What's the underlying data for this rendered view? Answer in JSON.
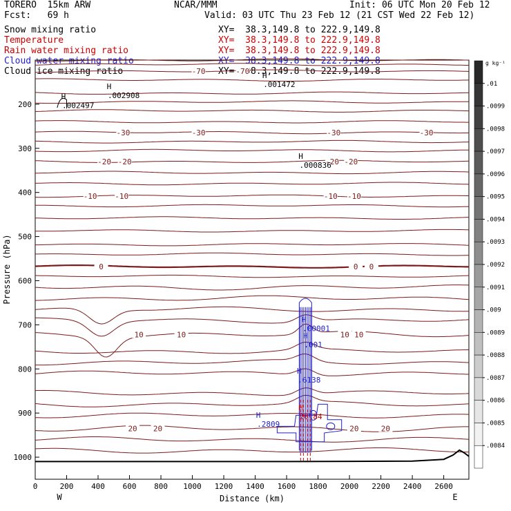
{
  "header": {
    "model": "TORERO  15km ARW",
    "org": "NCAR/MMM",
    "init": "Init: 06 UTC Mon 20 Feb 12",
    "fcst": "Fcst:   69 h",
    "valid": "Valid: 03 UTC Thu 23 Feb 12 (21 CST Wed 22 Feb 12)"
  },
  "fields": [
    {
      "name": "Snow mixing ratio",
      "xy": "XY=  38.3,149.8 to 222.9,149.8",
      "color": "#000000"
    },
    {
      "name": "Temperature",
      "xy": "XY=  38.3,149.8 to 222.9,149.8",
      "color": "#cc0000"
    },
    {
      "name": "Rain water mixing ratio",
      "xy": "XY=  38.3,149.8 to 222.9,149.8",
      "color": "#cc0000"
    },
    {
      "name": "Cloud water mixing ratio",
      "xy": "XY=  38.3,149.8 to 222.9,149.8",
      "color": "#1f1fd0"
    },
    {
      "name": "Cloud ice mixing ratio",
      "xy": "XY=  38.3,149.8 to 222.9,149.8",
      "color": "#000000"
    }
  ],
  "colors": {
    "temperature": "#7a1a1a",
    "rain": "#cc0000",
    "cloud_water": "#1f1fd0",
    "ground": "#000000"
  },
  "chart_data": {
    "type": "line",
    "xlabel": "Distance (km)",
    "ylabel": "Pressure (hPa)",
    "xlim": [
      0,
      2760
    ],
    "ylim": [
      1050,
      100
    ],
    "x_ticks": [
      0,
      200,
      400,
      600,
      800,
      1000,
      1200,
      1400,
      1600,
      1800,
      2000,
      2200,
      2400,
      2600
    ],
    "y_ticks": [
      200,
      300,
      400,
      500,
      600,
      700,
      800,
      900,
      1000
    ],
    "x_end_labels": {
      "left": "W",
      "right": "E"
    },
    "colorbar": {
      "unit": "g kg⁻¹",
      "labels": [
        ".01",
        ".0099",
        ".0098",
        ".0097",
        ".0096",
        ".0095",
        ".0094",
        ".0093",
        ".0092",
        ".0091",
        ".009",
        ".0089",
        ".0088",
        ".0087",
        ".0086",
        ".0085",
        ".0084"
      ]
    },
    "temperature_isotherms_degC": [
      {
        "value": -70,
        "p": 125,
        "labels": [
          {
            "x": 1040,
            "text": "-70"
          },
          {
            "x": 1320,
            "text": "-70"
          }
        ]
      },
      {
        "value": -30,
        "p": 264,
        "labels": [
          {
            "x": 560,
            "text": "-30"
          },
          {
            "x": 1040,
            "text": "-30"
          },
          {
            "x": 1900,
            "text": "-30"
          },
          {
            "x": 2490,
            "text": "-30"
          }
        ]
      },
      {
        "value": -20,
        "p": 330,
        "labels": [
          {
            "x": 440,
            "text": "-20"
          },
          {
            "x": 570,
            "text": "-20"
          },
          {
            "x": 1890,
            "text": "-20"
          },
          {
            "x": 2010,
            "text": "-20"
          }
        ]
      },
      {
        "value": -10,
        "p": 408,
        "labels": [
          {
            "x": 350,
            "text": "-10"
          },
          {
            "x": 550,
            "text": "-10"
          },
          {
            "x": 1880,
            "text": "-10"
          },
          {
            "x": 2030,
            "text": "-10"
          }
        ]
      },
      {
        "value": 0,
        "p": 568,
        "labels": [
          {
            "x": 420,
            "text": "0"
          },
          {
            "x": 2040,
            "text": "0"
          },
          {
            "x": 2140,
            "text": "0"
          }
        ]
      },
      {
        "value": 10,
        "p": 722,
        "labels": [
          {
            "x": 660,
            "text": "10"
          },
          {
            "x": 930,
            "text": "10"
          },
          {
            "x": 1970,
            "text": "10"
          },
          {
            "x": 2060,
            "text": "10"
          }
        ]
      },
      {
        "value": 20,
        "p": 935,
        "labels": [
          {
            "x": 620,
            "text": "20"
          },
          {
            "x": 780,
            "text": "20"
          },
          {
            "x": 2030,
            "text": "20"
          },
          {
            "x": 2230,
            "text": "20"
          }
        ]
      }
    ],
    "annotations": [
      {
        "type": "max",
        "x": 180,
        "p": 198,
        "text": ".002497",
        "color": "#000000"
      },
      {
        "type": "max",
        "x": 470,
        "p": 175,
        "text": ".002908",
        "color": "#000000"
      },
      {
        "type": "max",
        "x": 1460,
        "p": 150,
        "text": ".001472",
        "color": "#000000"
      },
      {
        "type": "max",
        "x": 1690,
        "p": 333,
        "text": ".000836",
        "color": "#000000"
      },
      {
        "type": "max",
        "x": 1710,
        "p": 703,
        "text": ".00001",
        "color": "#1f1fd0"
      },
      {
        "type": "max",
        "x": 1720,
        "p": 740,
        "text": ".001",
        "color": "#1f1fd0"
      },
      {
        "type": "max",
        "x": 1680,
        "p": 820,
        "text": ".6138",
        "color": "#1f1fd0"
      },
      {
        "type": "max",
        "x": 1690,
        "p": 903,
        "text": "20.84",
        "color": "#cc0000"
      },
      {
        "type": "max",
        "x": 1420,
        "p": 920,
        "text": ".2809",
        "color": "#1f1fd0"
      }
    ]
  }
}
